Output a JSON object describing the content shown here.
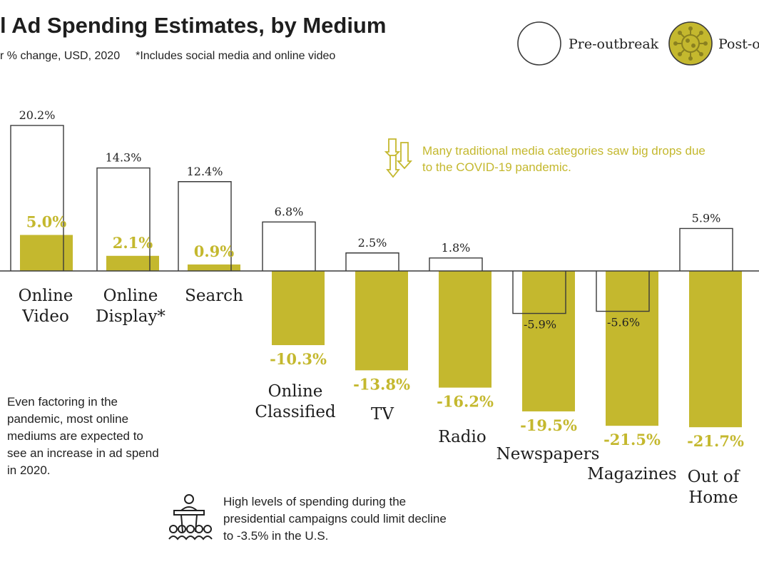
{
  "header": {
    "title": "l Ad Spending Estimates, by Medium",
    "subtitle": "r % change, USD, 2020",
    "footnote": "*Includes social media and online video"
  },
  "legend": {
    "pre_label": "Pre-outbreak",
    "post_label": "Post-o",
    "placement": "top-right"
  },
  "colors": {
    "post": "#c4b82e",
    "pre_outline": "#3a3a3a",
    "text": "#222222",
    "annotation": "#c4b82e"
  },
  "notes": {
    "online": "Even factoring in the pandemic, most online mediums are expected to see an increase in ad spend in 2020.",
    "traditional": "Many traditional media categories saw big drops due to the COVID-19 pandemic.",
    "campaign": "High levels of spending during the presidential campaigns could limit decline to -3.5% in the U.S."
  },
  "icons": [
    "down-arrows-icon",
    "podium-icon",
    "virus-icon"
  ],
  "chart_data": {
    "type": "bar",
    "categories": [
      [
        "Online",
        "Video"
      ],
      [
        "Online",
        "Display*"
      ],
      [
        "Search"
      ],
      [
        "Online",
        "Classified"
      ],
      [
        "TV"
      ],
      [
        "Radio"
      ],
      [
        "Newspapers"
      ],
      [
        "Magazines"
      ],
      [
        "Out of",
        "Home"
      ]
    ],
    "series": [
      {
        "name": "Pre-outbreak",
        "values": [
          20.2,
          14.3,
          12.4,
          6.8,
          2.5,
          1.8,
          -5.9,
          -5.6,
          5.9
        ]
      },
      {
        "name": "Post-o",
        "values": [
          5.0,
          2.1,
          0.9,
          -10.3,
          -13.8,
          -16.2,
          -19.5,
          -21.5,
          -21.7
        ]
      }
    ],
    "pre_labels": [
      "20.2%",
      "14.3%",
      "12.4%",
      "6.8%",
      "2.5%",
      "1.8%",
      "-5.9%",
      "-5.6%",
      "5.9%"
    ],
    "post_labels": [
      "5.0%",
      "2.1%",
      "0.9%",
      "-10.3%",
      "-13.8%",
      "-16.2%",
      "-19.5%",
      "-21.5%",
      "-21.7%"
    ],
    "xlabel": "",
    "ylabel": "",
    "ylim": [
      -25,
      25
    ],
    "grid": false
  }
}
